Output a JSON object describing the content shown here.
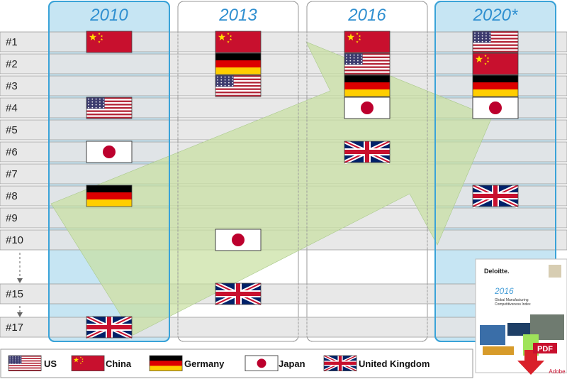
{
  "years": [
    "2010",
    "2013",
    "2016",
    "2020*"
  ],
  "ranks": [
    "#1",
    "#2",
    "#3",
    "#4",
    "#5",
    "#6",
    "#7",
    "#8",
    "#9",
    "#10",
    "#15",
    "#17"
  ],
  "placements": [
    {
      "year": 0,
      "rank": 0,
      "country": "china"
    },
    {
      "year": 0,
      "rank": 3,
      "country": "us"
    },
    {
      "year": 0,
      "rank": 5,
      "country": "japan"
    },
    {
      "year": 0,
      "rank": 7,
      "country": "germany"
    },
    {
      "year": 0,
      "rank": 11,
      "country": "uk"
    },
    {
      "year": 1,
      "rank": 0,
      "country": "china"
    },
    {
      "year": 1,
      "rank": 1,
      "country": "germany"
    },
    {
      "year": 1,
      "rank": 2,
      "country": "us"
    },
    {
      "year": 1,
      "rank": 9,
      "country": "japan"
    },
    {
      "year": 1,
      "rank": 10,
      "country": "uk"
    },
    {
      "year": 2,
      "rank": 0,
      "country": "china"
    },
    {
      "year": 2,
      "rank": 1,
      "country": "us"
    },
    {
      "year": 2,
      "rank": 2,
      "country": "germany"
    },
    {
      "year": 2,
      "rank": 3,
      "country": "japan"
    },
    {
      "year": 2,
      "rank": 5,
      "country": "uk"
    },
    {
      "year": 3,
      "rank": 0,
      "country": "us"
    },
    {
      "year": 3,
      "rank": 1,
      "country": "china"
    },
    {
      "year": 3,
      "rank": 2,
      "country": "germany"
    },
    {
      "year": 3,
      "rank": 3,
      "country": "japan"
    },
    {
      "year": 3,
      "rank": 7,
      "country": "uk"
    }
  ],
  "legend": [
    {
      "country": "us",
      "label": "US"
    },
    {
      "country": "china",
      "label": "China"
    },
    {
      "country": "germany",
      "label": "Germany"
    },
    {
      "country": "japan",
      "label": "Japan"
    },
    {
      "country": "uk",
      "label": "United Kingdom"
    }
  ],
  "report": {
    "brand": "Deloitte.",
    "year": "2016",
    "title_line1": "Global Manufacturing",
    "title_line2": "Competitiveness Index",
    "badge": "PDF",
    "vendor": "Adobe"
  },
  "colors": {
    "accent": "#2f8fd0",
    "highlight_column": "#c6e5f3",
    "row_fill": "#e4e4e4",
    "arrow": "#c8e0a0",
    "us_blue": "#3c3b6e",
    "us_red": "#b22234",
    "china_red": "#c8102e",
    "china_star": "#ffde00",
    "uk_blue": "#012169",
    "uk_red": "#c8102e",
    "de_black": "#000000",
    "de_red": "#dd0000",
    "de_gold": "#ffce00",
    "jp_red": "#bc002d"
  }
}
